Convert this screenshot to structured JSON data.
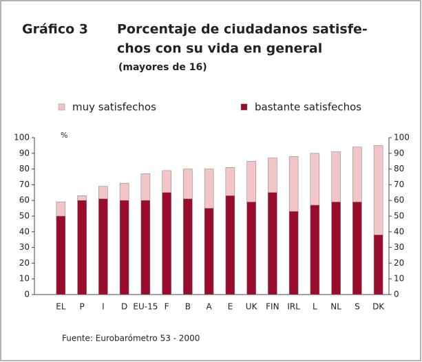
{
  "chart_data": {
    "type": "stacked_bar",
    "title_label": "Gráfico 3",
    "title": [
      "Porcentaje de ciudadanos satisfe-",
      "chos con su vida en general"
    ],
    "subtitle": "(mayores de 16)",
    "y_unit": "%",
    "source": "Fuente: Eurobarómetro 53 - 2000",
    "categories": [
      "EL",
      "P",
      "I",
      "D",
      "EU-15",
      "F",
      "B",
      "A",
      "E",
      "UK",
      "FIN",
      "IRL",
      "L",
      "NL",
      "S",
      "DK"
    ],
    "series": [
      {
        "name": "muy satisfechos",
        "color": "#f2c6c6",
        "values": [
          9,
          3,
          8,
          11,
          17,
          14,
          19,
          25,
          18,
          26,
          22,
          35,
          33,
          32,
          35,
          57
        ]
      },
      {
        "name": "bastante satisfechos",
        "color": "#990c2c",
        "values": [
          50,
          60,
          61,
          60,
          60,
          65,
          61,
          55,
          63,
          59,
          65,
          53,
          57,
          59,
          59,
          38
        ]
      }
    ],
    "ylim": [
      0,
      100
    ],
    "yticks": [
      0,
      10,
      20,
      30,
      40,
      50,
      60,
      70,
      80,
      90,
      100
    ],
    "grid": false
  }
}
